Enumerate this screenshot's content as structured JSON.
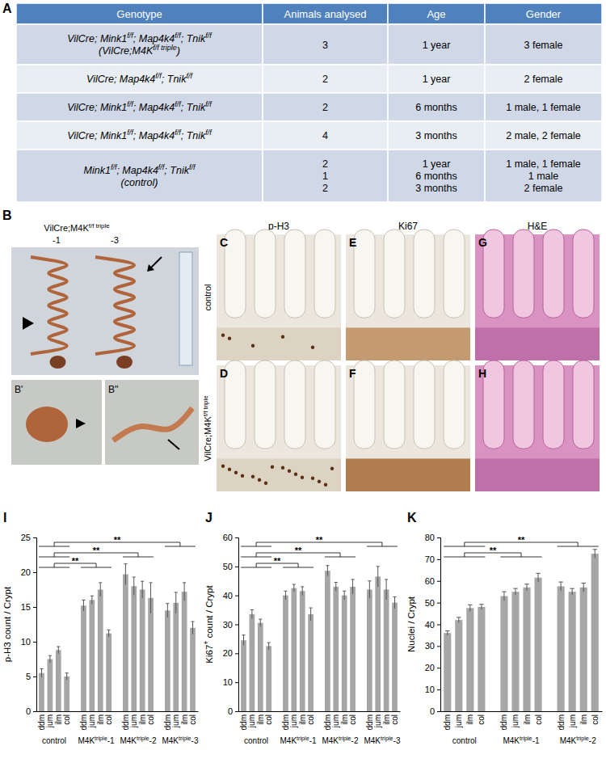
{
  "table": {
    "title": "A",
    "header": [
      "Genotype",
      "Animals analysed",
      "Age",
      "Gender"
    ],
    "rows": [
      {
        "genotype": [
          [
            "VilCre; Mink1",
            "f/f",
            "; Map4k4",
            "f/f",
            "; Tnik",
            "f/f"
          ],
          [
            "(VilCre;M4K",
            "f/f triple",
            ")"
          ]
        ],
        "animals": [
          3
        ],
        "age": [
          "1 year"
        ],
        "gender": [
          "3 female"
        ]
      },
      {
        "genotype": [
          [
            "VilCre; Map4k4",
            "f/f",
            "; Tnik",
            "f/f"
          ]
        ],
        "animals": [
          2
        ],
        "age": [
          "1 year"
        ],
        "gender": [
          "2 female"
        ]
      },
      {
        "genotype": [
          [
            "VilCre; Mink1",
            "f/f",
            "; Map4k4",
            "f/f",
            "; Tnik",
            "f/f"
          ]
        ],
        "animals": [
          2
        ],
        "age": [
          "6 months"
        ],
        "gender": [
          "1 male, 1 female"
        ]
      },
      {
        "genotype": [
          [
            "VilCre; Mink1",
            "f/f",
            "; Map4k4",
            "f/f",
            "; Tnik",
            "f/f"
          ]
        ],
        "animals": [
          4
        ],
        "age": [
          "3 months"
        ],
        "gender": [
          "2 male, 2 female"
        ]
      },
      {
        "genotype": [
          [
            "Mink1",
            "f/f",
            "; Map4k4",
            "f/f",
            "; Tnik",
            "f/f"
          ],
          [
            "(control)"
          ]
        ],
        "animals": [
          2,
          1,
          2
        ],
        "age": [
          "1 year",
          "6 months",
          "3 months"
        ],
        "gender": [
          "1 male, 1 female",
          "1 male",
          "2 female"
        ]
      }
    ]
  },
  "photo": {
    "title": "B",
    "genotype": [
      "VilCre;M4K",
      "f/f triple"
    ],
    "animals": [
      "-1",
      "-3"
    ],
    "insets": [
      "B'",
      "B''"
    ]
  },
  "micrographs": {
    "columns": [
      "p-H3",
      "Ki67",
      "H&E"
    ],
    "rows": [
      [
        "control"
      ],
      [
        "VilCre;M4K",
        "f/f triple"
      ]
    ],
    "panels": [
      [
        "C",
        "D"
      ],
      [
        "E",
        "F"
      ],
      [
        "G",
        "H"
      ]
    ]
  },
  "chart_data": [
    {
      "type": "bar",
      "title": "I",
      "y_label": [
        "p-H3 count / Crypt"
      ],
      "categories": [
        "ddm",
        "jum",
        "ilm",
        "col",
        "ddm",
        "jum",
        "ilm",
        "col",
        "ddm",
        "jum",
        "ilm",
        "col",
        "ddm",
        "jum",
        "ilm",
        "col"
      ],
      "groups": [
        [
          "control"
        ],
        [
          "M4K",
          "triple",
          "-1"
        ],
        [
          "M4K",
          "triple",
          "-2"
        ],
        [
          "M4K",
          "triple",
          "-3"
        ]
      ],
      "values": [
        5.5,
        7.5,
        8.8,
        5.0,
        15.2,
        16.0,
        17.5,
        11.2,
        19.7,
        18.0,
        17.5,
        16.3,
        14.5,
        15.6,
        17.2,
        12.0
      ],
      "errors": [
        0.6,
        0.5,
        0.5,
        0.5,
        0.8,
        0.6,
        1.0,
        0.5,
        1.5,
        1.3,
        1.2,
        2.2,
        1.0,
        1.5,
        1.3,
        0.9
      ],
      "color": "#a6a6a6",
      "ylim": [
        0,
        25
      ],
      "yticks": [
        0,
        5,
        10,
        15,
        20,
        25
      ],
      "annotations": [
        {
          "text": "**",
          "groups": [
            0,
            3
          ]
        },
        {
          "text": "**",
          "groups": [
            0,
            2
          ]
        },
        {
          "text": "**",
          "groups": [
            0,
            1
          ]
        }
      ]
    },
    {
      "type": "bar",
      "title": "J",
      "y_label": [
        "Ki67",
        "+",
        " count / Crypt"
      ],
      "categories": [
        "ddm",
        "jum",
        "ilm",
        "col",
        "ddm",
        "jum",
        "ilm",
        "col",
        "ddm",
        "jum",
        "ilm",
        "col",
        "ddm",
        "jum",
        "ilm",
        "col"
      ],
      "groups": [
        [
          "control"
        ],
        [
          "M4K",
          "triple",
          "-1"
        ],
        [
          "M4K",
          "triple",
          "-2"
        ],
        [
          "M4K",
          "triple",
          "-3"
        ]
      ],
      "values": [
        24.5,
        33.5,
        30.5,
        22.5,
        40.0,
        42.5,
        41.5,
        33.5,
        48.5,
        43.0,
        40.0,
        43.0,
        42.0,
        46.5,
        42.0,
        37.5
      ],
      "errors": [
        1.8,
        1.5,
        1.3,
        1.2,
        1.5,
        1.3,
        1.5,
        2.2,
        1.8,
        1.5,
        1.5,
        2.5,
        3.0,
        3.5,
        3.5,
        2.0
      ],
      "color": "#a6a6a6",
      "ylim": [
        0,
        60
      ],
      "yticks": [
        0,
        10,
        20,
        30,
        40,
        50,
        60
      ],
      "annotations": [
        {
          "text": "**",
          "groups": [
            0,
            3
          ]
        },
        {
          "text": "**",
          "groups": [
            0,
            2
          ]
        },
        {
          "text": "**",
          "groups": [
            0,
            1
          ]
        }
      ]
    },
    {
      "type": "bar",
      "title": "K",
      "y_label": [
        "Nuclei / Crypt"
      ],
      "categories": [
        "ddm",
        "jum",
        "ilm",
        "col",
        "ddm",
        "jum",
        "ilm",
        "col",
        "ddm",
        "jum",
        "ilm",
        "col"
      ],
      "groups": [
        [
          "control"
        ],
        [
          "M4K",
          "triple",
          "-1"
        ],
        [
          "M4K",
          "triple",
          "-2"
        ]
      ],
      "values": [
        36.0,
        42.0,
        47.5,
        48.0,
        53.0,
        55.0,
        57.0,
        61.5,
        57.5,
        55.0,
        57.0,
        72.5
      ],
      "errors": [
        1.0,
        1.2,
        1.5,
        1.2,
        2.0,
        1.5,
        1.5,
        2.0,
        2.0,
        1.5,
        2.0,
        2.0
      ],
      "color": "#a6a6a6",
      "ylim": [
        0,
        80
      ],
      "yticks": [
        0,
        10,
        20,
        30,
        40,
        50,
        60,
        70,
        80
      ],
      "annotations": [
        {
          "text": "**",
          "groups": [
            0,
            2
          ]
        },
        {
          "text": "**",
          "groups": [
            0,
            1
          ]
        }
      ]
    }
  ]
}
